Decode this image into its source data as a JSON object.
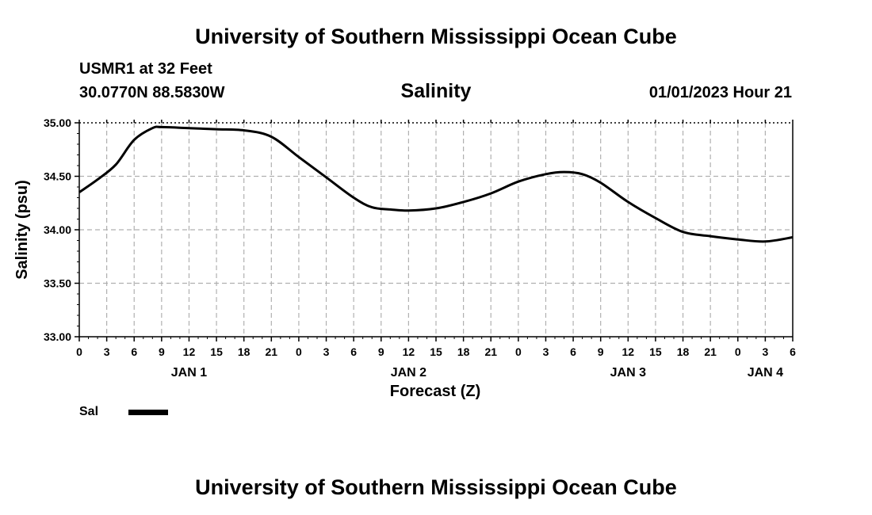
{
  "header": {
    "title": "University of Southern Mississippi Ocean Cube",
    "station": "USMR1 at 32 Feet",
    "coords": "30.0770N  88.5830W",
    "parameter": "Salinity",
    "datetime": "01/01/2023 Hour 21"
  },
  "legend": {
    "label": "Sal",
    "color": "#000000"
  },
  "footer": {
    "title": "University of Southern Mississippi Ocean Cube"
  },
  "chart_data": {
    "type": "line",
    "title": "Salinity",
    "xlabel": "Forecast (Z)",
    "ylabel": "Salinity (psu)",
    "ylim": [
      33.0,
      35.0
    ],
    "yticks": [
      "33.00",
      "33.50",
      "34.00",
      "34.50",
      "35.00"
    ],
    "xlim": [
      0,
      78
    ],
    "xtick_labels": [
      "0",
      "3",
      "6",
      "9",
      "12",
      "15",
      "18",
      "21",
      "0",
      "3",
      "6",
      "9",
      "12",
      "15",
      "18",
      "21",
      "0",
      "3",
      "6",
      "9",
      "12",
      "15",
      "18",
      "21",
      "0",
      "3",
      "6"
    ],
    "day_labels": [
      {
        "label": "JAN 1",
        "hour": 12
      },
      {
        "label": "JAN 2",
        "hour": 36
      },
      {
        "label": "JAN 3",
        "hour": 60
      },
      {
        "label": "JAN 4",
        "hour": 75
      }
    ],
    "grid": true,
    "series": [
      {
        "name": "Sal",
        "x": [
          0,
          2,
          4,
          6,
          8,
          9,
          12,
          15,
          18,
          21,
          24,
          27,
          30,
          32,
          34,
          36,
          39,
          42,
          45,
          48,
          51,
          53,
          55,
          57,
          60,
          63,
          66,
          69,
          72,
          75,
          78
        ],
        "values": [
          34.35,
          34.47,
          34.61,
          34.84,
          34.95,
          34.96,
          34.95,
          34.94,
          34.93,
          34.87,
          34.68,
          34.49,
          34.3,
          34.21,
          34.19,
          34.18,
          34.2,
          34.26,
          34.34,
          34.45,
          34.52,
          34.54,
          34.52,
          34.44,
          34.26,
          34.11,
          33.98,
          33.94,
          33.91,
          33.89,
          33.93
        ]
      }
    ]
  }
}
